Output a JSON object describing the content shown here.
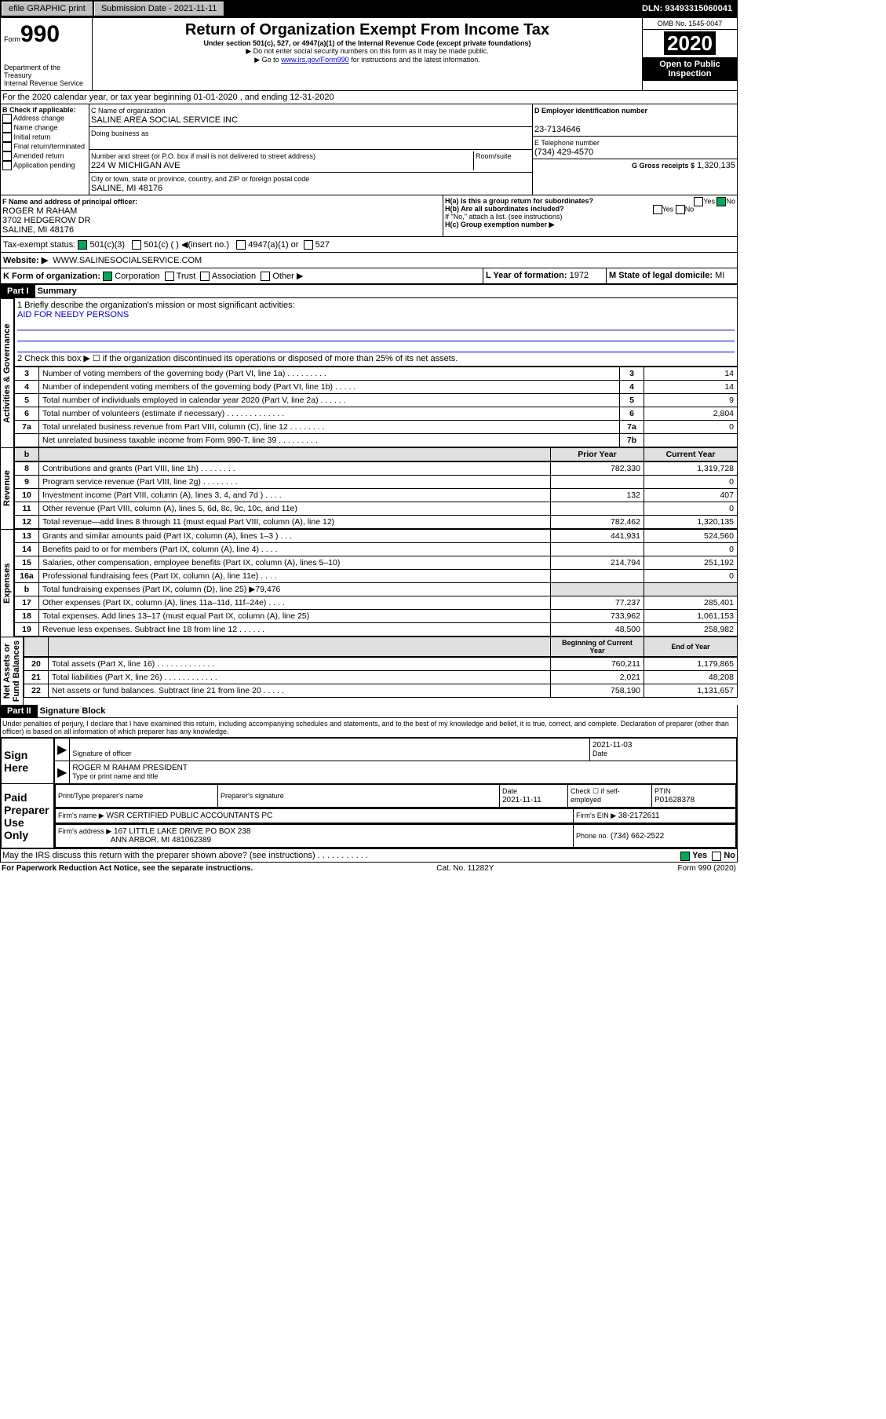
{
  "topbar": {
    "efile": "efile GRAPHIC print",
    "sub": "Submission Date - 2021-11-11",
    "dln": "DLN: 93493315060041"
  },
  "hdr": {
    "form": "990",
    "formword": "Form",
    "title": "Return of Organization Exempt From Income Tax",
    "sub1": "Under section 501(c), 527, or 4947(a)(1) of the Internal Revenue Code (except private foundations)",
    "sub2": "▶ Do not enter social security numbers on this form as it may be made public.",
    "sub3": "▶ Go to www.irs.gov/Form990 for instructions and the latest information.",
    "dept": "Department of the Treasury\nInternal Revenue Service",
    "omb": "OMB No. 1545-0047",
    "year": "2020",
    "open": "Open to Public Inspection"
  },
  "a": {
    "period": "For the 2020 calendar year, or tax year beginning 01-01-2020   , and ending 12-31-2020"
  },
  "b": {
    "label": "B Check if applicable:",
    "opts": [
      "Address change",
      "Name change",
      "Initial return",
      "Final return/terminated",
      "Amended return",
      "Application pending"
    ]
  },
  "c": {
    "nameLabel": "C Name of organization",
    "name": "SALINE AREA SOCIAL SERVICE INC",
    "dba": "Doing business as",
    "streetLabel": "Number and street (or P.O. box if mail is not delivered to street address)",
    "roomLabel": "Room/suite",
    "street": "224 W MICHIGAN AVE",
    "cityLabel": "City or town, state or province, country, and ZIP or foreign postal code",
    "city": "SALINE, MI  48176"
  },
  "d": {
    "label": "D Employer identification number",
    "val": "23-7134646"
  },
  "e": {
    "label": "E Telephone number",
    "val": "(734) 429-4570"
  },
  "g": {
    "label": "G Gross receipts $",
    "val": "1,320,135"
  },
  "f": {
    "label": "F Name and address of principal officer:",
    "name": "ROGER M RAHAM",
    "addr1": "3702 HEDGEROW DR",
    "addr2": "SALINE, MI  48176"
  },
  "h": {
    "a": "H(a)  Is this a group return for subordinates?",
    "ano": "No",
    "ayes": "Yes",
    "b": "H(b)  Are all subordinates included?",
    "byes": "Yes",
    "bno": "No",
    "bnote": "If \"No,\" attach a list. (see instructions)",
    "c": "H(c)  Group exemption number ▶"
  },
  "i": {
    "label": "Tax-exempt status:",
    "o1": "501(c)(3)",
    "o2": "501(c) (  ) ◀(insert no.)",
    "o3": "4947(a)(1) or",
    "o4": "527"
  },
  "j": {
    "label": "Website: ▶",
    "val": "WWW.SALINESOCIALSERVICE.COM"
  },
  "k": {
    "label": "K Form of organization:",
    "o1": "Corporation",
    "o2": "Trust",
    "o3": "Association",
    "o4": "Other ▶"
  },
  "l": {
    "label": "L Year of formation:",
    "val": "1972"
  },
  "m": {
    "label": "M State of legal domicile:",
    "val": "MI"
  },
  "p1": {
    "label": "Part I",
    "title": "Summary"
  },
  "s1": {
    "l1": "1  Briefly describe the organization's mission or most significant activities:",
    "mission": "AID FOR NEEDY PERSONS",
    "l2": "2   Check this box ▶ ☐  if the organization discontinued its operations or disposed of more than 25% of its net assets.",
    "sidelabel": "Activities & Governance",
    "rows": [
      {
        "n": "3",
        "t": "Number of voting members of the governing body (Part VI, line 1a)  .   .   .   .   .   .   .   .   .",
        "rn": "3",
        "v": "14"
      },
      {
        "n": "4",
        "t": "Number of independent voting members of the governing body (Part VI, line 1b)  .   .   .   .   .",
        "rn": "4",
        "v": "14"
      },
      {
        "n": "5",
        "t": "Total number of individuals employed in calendar year 2020 (Part V, line 2a)  .   .   .   .   .   .",
        "rn": "5",
        "v": "9"
      },
      {
        "n": "6",
        "t": "Total number of volunteers (estimate if necessary)  .   .   .   .   .   .   .   .   .   .   .   .   .",
        "rn": "6",
        "v": "2,804"
      },
      {
        "n": "7a",
        "t": "Total unrelated business revenue from Part VIII, column (C), line 12  .   .   .   .   .   .   .   .",
        "rn": "7a",
        "v": "0"
      },
      {
        "n": "",
        "t": "Net unrelated business taxable income from Form 990-T, line 39  .   .   .   .   .   .   .   .   .",
        "rn": "7b",
        "v": ""
      }
    ]
  },
  "rev": {
    "sidelabel": "Revenue",
    "hdr1": "Prior Year",
    "hdr2": "Current Year",
    "rows": [
      {
        "n": "8",
        "t": "Contributions and grants (Part VIII, line 1h)  .   .   .   .   .   .   .   .",
        "p": "782,330",
        "c": "1,319,728"
      },
      {
        "n": "9",
        "t": "Program service revenue (Part VIII, line 2g)  .   .   .   .   .   .   .   .",
        "p": "",
        "c": "0"
      },
      {
        "n": "10",
        "t": "Investment income (Part VIII, column (A), lines 3, 4, and 7d )  .   .   .   .",
        "p": "132",
        "c": "407"
      },
      {
        "n": "11",
        "t": "Other revenue (Part VIII, column (A), lines 5, 6d, 8c, 9c, 10c, and 11e)",
        "p": "",
        "c": "0"
      },
      {
        "n": "12",
        "t": "Total revenue—add lines 8 through 11 (must equal Part VIII, column (A), line 12)",
        "p": "782,462",
        "c": "1,320,135"
      }
    ]
  },
  "exp": {
    "sidelabel": "Expenses",
    "rows": [
      {
        "n": "13",
        "t": "Grants and similar amounts paid (Part IX, column (A), lines 1–3 )  .   .   .",
        "p": "441,931",
        "c": "524,560"
      },
      {
        "n": "14",
        "t": "Benefits paid to or for members (Part IX, column (A), line 4)  .   .   .   .",
        "p": "",
        "c": "0"
      },
      {
        "n": "15",
        "t": "Salaries, other compensation, employee benefits (Part IX, column (A), lines 5–10)",
        "p": "214,794",
        "c": "251,192"
      },
      {
        "n": "16a",
        "t": "Professional fundraising fees (Part IX, column (A), line 11e)  .   .   .   .",
        "p": "",
        "c": "0"
      },
      {
        "n": "b",
        "t": "Total fundraising expenses (Part IX, column (D), line 25) ▶79,476",
        "p": "gray",
        "c": "gray"
      },
      {
        "n": "17",
        "t": "Other expenses (Part IX, column (A), lines 11a–11d, 11f–24e)  .   .   .   .",
        "p": "77,237",
        "c": "285,401"
      },
      {
        "n": "18",
        "t": "Total expenses. Add lines 13–17 (must equal Part IX, column (A), line 25)",
        "p": "733,962",
        "c": "1,061,153"
      },
      {
        "n": "19",
        "t": "Revenue less expenses. Subtract line 18 from line 12  .   .   .   .   .   .",
        "p": "48,500",
        "c": "258,982"
      }
    ]
  },
  "net": {
    "sidelabel": "Net Assets or\nFund Balances",
    "hdr1": "Beginning of Current Year",
    "hdr2": "End of Year",
    "rows": [
      {
        "n": "20",
        "t": "Total assets (Part X, line 16)  .   .   .   .   .   .   .   .   .   .   .   .   .",
        "p": "760,211",
        "c": "1,179,865"
      },
      {
        "n": "21",
        "t": "Total liabilities (Part X, line 26)  .   .   .   .   .   .   .   .   .   .   .   .",
        "p": "2,021",
        "c": "48,208"
      },
      {
        "n": "22",
        "t": "Net assets or fund balances. Subtract line 21 from line 20  .   .   .   .   .",
        "p": "758,190",
        "c": "1,131,657"
      }
    ]
  },
  "p2": {
    "label": "Part II",
    "title": "Signature Block",
    "decl": "Under penalties of perjury, I declare that I have examined this return, including accompanying schedules and statements, and to the best of my knowledge and belief, it is true, correct, and complete. Declaration of preparer (other than officer) is based on all information of which preparer has any knowledge."
  },
  "sign": {
    "signhere": "Sign Here",
    "sigoff": "Signature of officer",
    "date": "2021-11-03",
    "datel": "Date",
    "officer": "ROGER M RAHAM  PRESIDENT",
    "typel": "Type or print name and title"
  },
  "paid": {
    "label": "Paid Preparer Use Only",
    "c1": "Print/Type preparer's name",
    "c2": "Preparer's signature",
    "c3": "Date",
    "c3v": "2021-11-11",
    "c4": "Check ☐ if self-employed",
    "c5": "PTIN",
    "c5v": "P01628378",
    "firm": "Firm's name    ▶",
    "firmv": "WSR CERTIFIED PUBLIC ACCOUNTANTS PC",
    "ein": "Firm's EIN ▶",
    "einv": "38-2172611",
    "addr": "Firm's address ▶",
    "addrv": "167 LITTLE LAKE DRIVE PO BOX 238",
    "addrv2": "ANN ARBOR, MI  481062389",
    "phone": "Phone no.",
    "phonev": "(734) 662-2522"
  },
  "disc": {
    "q": "May the IRS discuss this return with the preparer shown above? (see instructions)  .   .   .   .   .   .   .   .   .   .   .",
    "yes": "Yes",
    "no": "No"
  },
  "foot": {
    "l": "For Paperwork Reduction Act Notice, see the separate instructions.",
    "m": "Cat. No. 11282Y",
    "r": "Form 990 (2020)"
  }
}
